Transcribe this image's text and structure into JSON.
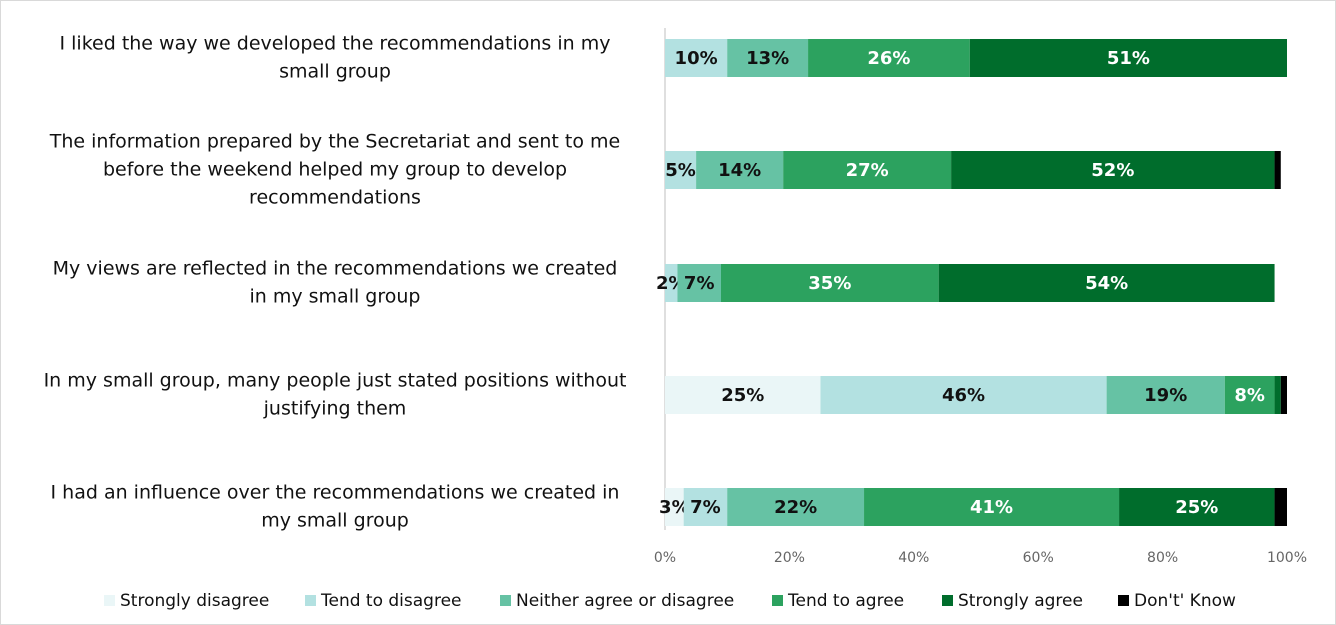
{
  "chart_data": {
    "type": "stacked_bar_horizontal",
    "categories": [
      [
        "I liked the way we developed the recommendations in my",
        "small group"
      ],
      [
        "The information prepared by the Secretariat and sent to me",
        "before the weekend helped my group to develop",
        "recommendations"
      ],
      [
        "My views are reflected in the recommendations we created",
        "in my small group"
      ],
      [
        "In my small group, many people just stated positions without",
        "justifying them"
      ],
      [
        "I had an influence over the recommendations we created in",
        "my small group"
      ]
    ],
    "series": [
      {
        "name": "Strongly disagree",
        "color": "#eaf6f7",
        "values": [
          0,
          0,
          0,
          25,
          3
        ],
        "value_labels": [
          null,
          null,
          null,
          "25%",
          "3%"
        ]
      },
      {
        "name": "Tend to disagree",
        "color": "#b3e1e1",
        "values": [
          10,
          5,
          2,
          46,
          7
        ],
        "value_labels": [
          "10%",
          "5%",
          "2%",
          "46%",
          "7%"
        ]
      },
      {
        "name": "Neither agree or disagree",
        "color": "#66c2a4",
        "values": [
          13,
          14,
          7,
          19,
          22
        ],
        "value_labels": [
          "13%",
          "14%",
          "7%",
          "19%",
          "22%"
        ]
      },
      {
        "name": "Tend to agree",
        "color": "#2ca25f",
        "values": [
          26,
          27,
          35,
          8,
          41
        ],
        "value_labels": [
          "26%",
          "27%",
          "35%",
          "8%",
          "41%"
        ]
      },
      {
        "name": "Strongly agree",
        "color": "#006d2c",
        "values": [
          51,
          52,
          54,
          1,
          25
        ],
        "value_labels": [
          "51%",
          "52%",
          "54%",
          null,
          "25%"
        ]
      },
      {
        "name": "Don't' Know",
        "color": "#000000",
        "values": [
          0,
          1,
          0,
          1,
          2
        ],
        "value_labels": [
          null,
          null,
          null,
          null,
          null
        ]
      }
    ],
    "xlim": [
      0,
      100
    ],
    "xticks": [
      {
        "value": 0,
        "label": "0%"
      },
      {
        "value": 20,
        "label": "20%"
      },
      {
        "value": 40,
        "label": "40%"
      },
      {
        "value": 60,
        "label": "60%"
      },
      {
        "value": 80,
        "label": "80%"
      },
      {
        "value": 100,
        "label": "100%"
      }
    ],
    "legend": "bottom"
  }
}
